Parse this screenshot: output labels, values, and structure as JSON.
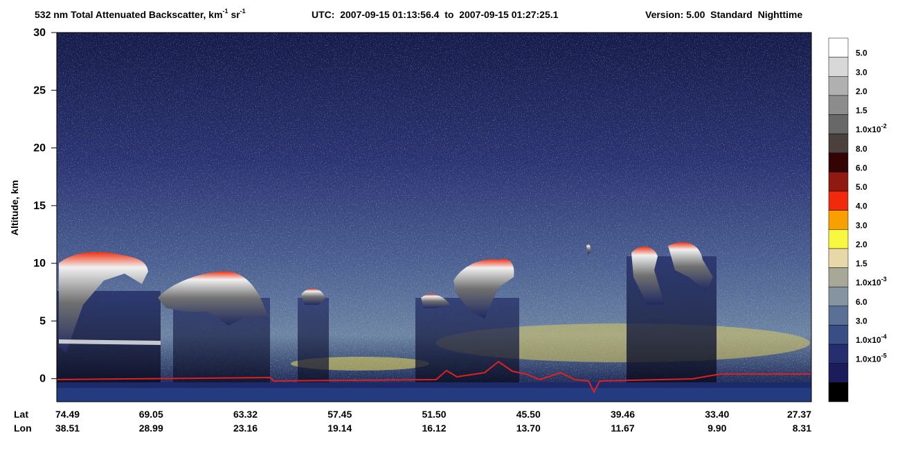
{
  "chart_data": {
    "type": "curtain",
    "title": {
      "text": "532 nm Total Attenuated Backscatter, km",
      "sup1": "-1",
      "mid": " sr",
      "sup2": "-1"
    },
    "time_range": "UTC:  2007-09-15 01:13:56.4  to  2007-09-15 01:27:25.1",
    "version": "Version: 5.00  Standard  Nighttime",
    "y_label": "Altitude, km",
    "ylim": [
      -2,
      30
    ],
    "yticks": [
      0,
      5,
      10,
      15,
      20,
      25,
      30
    ],
    "x_rows": [
      {
        "name": "Lat",
        "labels": [
          "74.49",
          "69.05",
          "63.32",
          "57.45",
          "51.50",
          "45.50",
          "39.46",
          "33.40",
          "27.37"
        ]
      },
      {
        "name": "Lon",
        "labels": [
          "38.51",
          "28.99",
          "23.16",
          "19.14",
          "16.12",
          "13.70",
          "11.67",
          "9.90",
          "8.31"
        ]
      }
    ],
    "colorbar": {
      "colors": [
        "#ffffff",
        "#d8d8d8",
        "#b0b0b0",
        "#8c8c8c",
        "#686868",
        "#4a403c",
        "#340404",
        "#901a12",
        "#f02a0a",
        "#f8a000",
        "#f8f840",
        "#e8d8a8",
        "#a8a898",
        "#8494a0",
        "#5a7096",
        "#3a4e86",
        "#262e70",
        "#1c1c5c",
        "#000000"
      ],
      "labels": [
        {
          "text": "5.0"
        },
        {
          "text": "3.0"
        },
        {
          "text": "2.0"
        },
        {
          "text": "1.5"
        },
        {
          "text": "1.0x10",
          "sup": "-2"
        },
        {
          "text": "8.0"
        },
        {
          "text": "6.0"
        },
        {
          "text": "5.0"
        },
        {
          "text": "4.0"
        },
        {
          "text": "3.0"
        },
        {
          "text": "2.0"
        },
        {
          "text": "1.5"
        },
        {
          "text": "1.0x10",
          "sup": "-3"
        },
        {
          "text": "6.0"
        },
        {
          "text": "3.0"
        },
        {
          "text": "1.0x10",
          "sup": "-4"
        },
        {
          "text": "1.0x10",
          "sup": "-5"
        }
      ]
    }
  }
}
